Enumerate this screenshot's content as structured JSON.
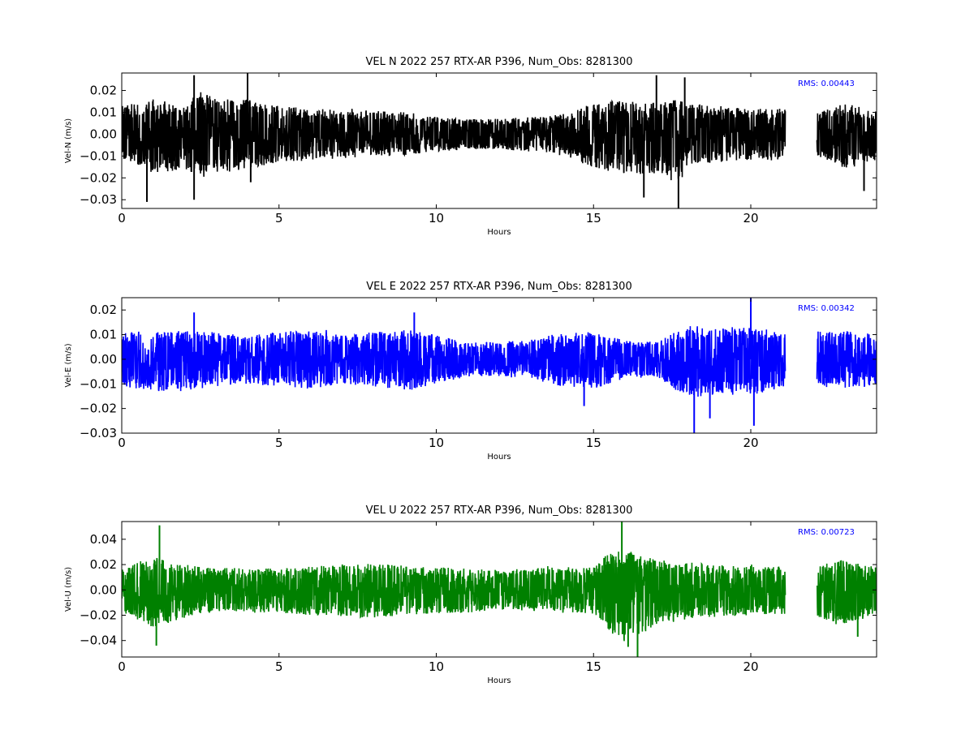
{
  "chart_data": [
    {
      "type": "line",
      "title": "VEL N 2022 257 RTX-AR  P396, Num_Obs: 8281300",
      "xlabel": "Hours",
      "ylabel": "Vel-N (m/s)",
      "xlim": [
        0,
        24
      ],
      "ylim": [
        -0.034,
        0.028
      ],
      "xticks": [
        0,
        5,
        10,
        15,
        20
      ],
      "xtick_labels": [
        "0",
        "5",
        "10",
        "15",
        "20"
      ],
      "yticks": [
        -0.03,
        -0.02,
        -0.01,
        0.0,
        0.01,
        0.02
      ],
      "ytick_labels": [
        "−0.03",
        "−0.02",
        "−0.01",
        "0.00",
        "0.01",
        "0.02"
      ],
      "color": "#000000",
      "rms_label": "RMS:  0.00443",
      "data_gap_hours": [
        21.1,
        22.1
      ],
      "envelope": {
        "x": [
          0,
          1,
          2,
          2.5,
          3,
          4,
          5,
          6,
          7,
          8,
          9,
          10,
          11,
          12,
          13,
          14,
          15,
          16,
          17,
          17.7,
          18,
          19,
          20,
          21.1,
          22.1,
          23,
          24
        ],
        "upper": [
          0.013,
          0.016,
          0.014,
          0.02,
          0.016,
          0.016,
          0.013,
          0.012,
          0.011,
          0.011,
          0.01,
          0.008,
          0.007,
          0.007,
          0.008,
          0.009,
          0.014,
          0.016,
          0.014,
          0.016,
          0.014,
          0.013,
          0.012,
          0.012,
          0.01,
          0.014,
          0.011
        ],
        "lower": [
          -0.012,
          -0.018,
          -0.016,
          -0.02,
          -0.018,
          -0.016,
          -0.013,
          -0.012,
          -0.011,
          -0.01,
          -0.01,
          -0.008,
          -0.007,
          -0.007,
          -0.008,
          -0.009,
          -0.016,
          -0.018,
          -0.018,
          -0.024,
          -0.014,
          -0.013,
          -0.012,
          -0.012,
          -0.01,
          -0.016,
          -0.012
        ]
      },
      "spikes": [
        [
          0.8,
          -0.031
        ],
        [
          2.3,
          0.027
        ],
        [
          2.3,
          -0.03
        ],
        [
          4.0,
          0.028
        ],
        [
          4.1,
          -0.022
        ],
        [
          16.6,
          -0.029
        ],
        [
          17.0,
          0.027
        ],
        [
          17.7,
          -0.034
        ],
        [
          17.9,
          0.026
        ],
        [
          23.6,
          -0.026
        ]
      ]
    },
    {
      "type": "line",
      "title": "VEL E 2022 257 RTX-AR  P396, Num_Obs: 8281300",
      "xlabel": "Hours",
      "ylabel": "Vel-E (m/s)",
      "xlim": [
        0,
        24
      ],
      "ylim": [
        -0.03,
        0.025
      ],
      "xticks": [
        0,
        5,
        10,
        15,
        20
      ],
      "xtick_labels": [
        "0",
        "5",
        "10",
        "15",
        "20"
      ],
      "yticks": [
        -0.03,
        -0.02,
        -0.01,
        0.0,
        0.01,
        0.02
      ],
      "ytick_labels": [
        "−0.03",
        "−0.02",
        "−0.01",
        "0.00",
        "0.01",
        "0.02"
      ],
      "color": "#0000ff",
      "rms_label": "RMS:  0.00342",
      "data_gap_hours": [
        21.1,
        22.1
      ],
      "envelope": {
        "x": [
          0,
          1,
          2,
          3,
          4,
          5,
          6,
          7,
          8,
          9,
          10,
          11,
          12,
          13,
          14,
          15,
          16,
          17,
          18,
          19,
          20,
          21.1,
          22.1,
          23,
          24
        ],
        "upper": [
          0.011,
          0.012,
          0.012,
          0.011,
          0.01,
          0.011,
          0.012,
          0.01,
          0.011,
          0.012,
          0.01,
          0.007,
          0.007,
          0.008,
          0.011,
          0.011,
          0.008,
          0.007,
          0.014,
          0.013,
          0.013,
          0.011,
          0.011,
          0.012,
          0.01
        ],
        "lower": [
          -0.011,
          -0.013,
          -0.013,
          -0.011,
          -0.01,
          -0.011,
          -0.012,
          -0.01,
          -0.011,
          -0.013,
          -0.01,
          -0.007,
          -0.007,
          -0.008,
          -0.011,
          -0.012,
          -0.008,
          -0.007,
          -0.016,
          -0.014,
          -0.015,
          -0.011,
          -0.011,
          -0.012,
          -0.011
        ]
      },
      "spikes": [
        [
          2.3,
          0.019
        ],
        [
          9.3,
          0.019
        ],
        [
          14.7,
          -0.019
        ],
        [
          18.2,
          -0.03
        ],
        [
          18.7,
          -0.024
        ],
        [
          20.0,
          0.025
        ],
        [
          20.1,
          -0.027
        ]
      ]
    },
    {
      "type": "line",
      "title": "VEL U 2022 257 RTX-AR  P396, Num_Obs: 8281300",
      "xlabel": "Hours",
      "ylabel": "Vel-U (m/s)",
      "xlim": [
        0,
        24
      ],
      "ylim": [
        -0.053,
        0.054
      ],
      "xticks": [
        0,
        5,
        10,
        15,
        20
      ],
      "xtick_labels": [
        "0",
        "5",
        "10",
        "15",
        "20"
      ],
      "yticks": [
        -0.04,
        -0.02,
        0.0,
        0.02,
        0.04
      ],
      "ytick_labels": [
        "−0.04",
        "−0.02",
        "0.00",
        "0.02",
        "0.04"
      ],
      "color": "#008000",
      "rms_label": "RMS:  0.00723",
      "data_gap_hours": [
        21.1,
        22.1
      ],
      "envelope": {
        "x": [
          0,
          1,
          2,
          3,
          4,
          5,
          6,
          7,
          8,
          9,
          10,
          11,
          12,
          13,
          14,
          15,
          15.5,
          16,
          16.5,
          17,
          18,
          19,
          20,
          21.1,
          22.1,
          23,
          24
        ],
        "upper": [
          0.018,
          0.026,
          0.02,
          0.017,
          0.018,
          0.017,
          0.019,
          0.02,
          0.021,
          0.019,
          0.018,
          0.017,
          0.016,
          0.017,
          0.018,
          0.018,
          0.03,
          0.032,
          0.028,
          0.024,
          0.022,
          0.02,
          0.019,
          0.019,
          0.02,
          0.024,
          0.018
        ],
        "lower": [
          -0.018,
          -0.03,
          -0.022,
          -0.018,
          -0.018,
          -0.018,
          -0.02,
          -0.021,
          -0.022,
          -0.02,
          -0.019,
          -0.018,
          -0.016,
          -0.017,
          -0.018,
          -0.019,
          -0.034,
          -0.04,
          -0.035,
          -0.028,
          -0.023,
          -0.021,
          -0.02,
          -0.019,
          -0.022,
          -0.028,
          -0.02
        ]
      },
      "spikes": [
        [
          1.2,
          0.051
        ],
        [
          1.1,
          -0.044
        ],
        [
          15.9,
          0.054
        ],
        [
          16.4,
          -0.053
        ],
        [
          16.1,
          -0.045
        ],
        [
          23.4,
          -0.037
        ]
      ]
    }
  ]
}
